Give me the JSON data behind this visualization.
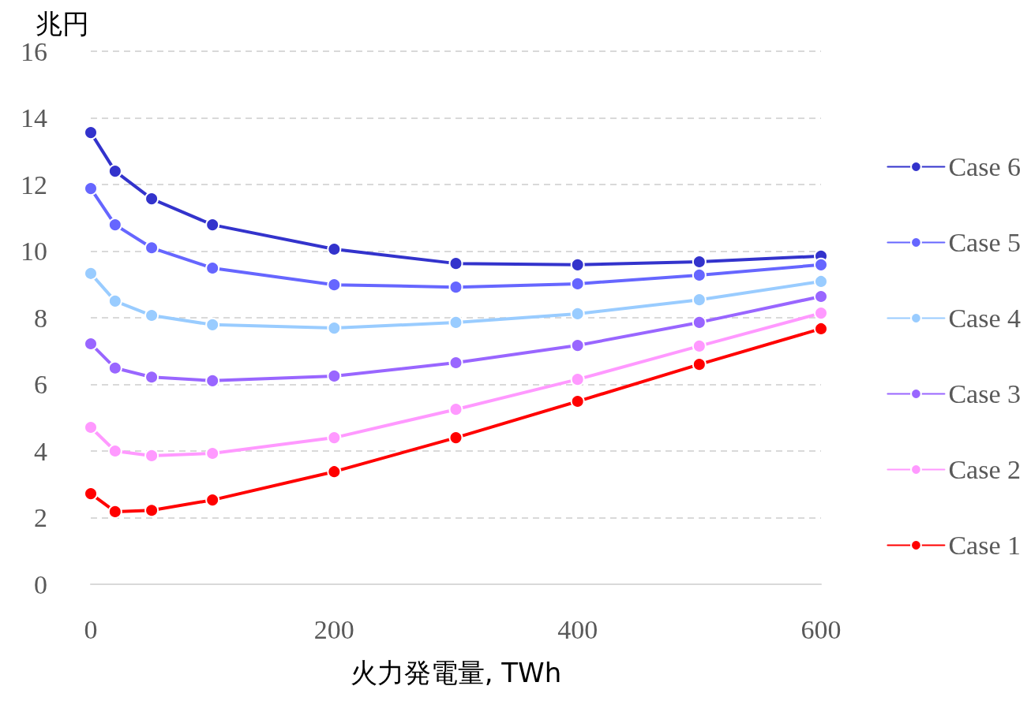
{
  "chart_data": {
    "type": "line",
    "ylabel": "兆円",
    "xlabel": "火力発電量, TWh",
    "x": [
      0,
      20,
      50,
      100,
      200,
      300,
      400,
      500,
      600
    ],
    "series": [
      {
        "name": "Case 6",
        "color": "#3333cc",
        "values": [
          13.56,
          12.4,
          11.57,
          10.79,
          10.06,
          9.63,
          9.59,
          9.68,
          9.85
        ]
      },
      {
        "name": "Case 5",
        "color": "#6666ff",
        "values": [
          11.88,
          10.79,
          10.1,
          9.49,
          8.99,
          8.92,
          9.02,
          9.28,
          9.59
        ]
      },
      {
        "name": "Case 4",
        "color": "#99ccff",
        "values": [
          9.33,
          8.5,
          8.07,
          7.79,
          7.69,
          7.86,
          8.12,
          8.54,
          9.09
        ]
      },
      {
        "name": "Case 3",
        "color": "#9966ff",
        "values": [
          7.22,
          6.49,
          6.22,
          6.11,
          6.25,
          6.65,
          7.17,
          7.86,
          8.64
        ]
      },
      {
        "name": "Case 2",
        "color": "#ff99ff",
        "values": [
          4.71,
          4.0,
          3.86,
          3.93,
          4.4,
          5.25,
          6.15,
          7.15,
          8.14
        ]
      },
      {
        "name": "Case 1",
        "color": "#ff0000",
        "values": [
          2.72,
          2.18,
          2.22,
          2.53,
          3.38,
          4.4,
          5.49,
          6.6,
          7.67
        ]
      }
    ],
    "xlim": [
      0,
      600
    ],
    "xticks": [
      0,
      200,
      400,
      600
    ],
    "ylim": [
      0,
      16
    ],
    "yticks": [
      0,
      2,
      4,
      6,
      8,
      10,
      12,
      14,
      16
    ],
    "grid": "y",
    "legend": "right",
    "marker": "circle",
    "line_style": "solid"
  }
}
